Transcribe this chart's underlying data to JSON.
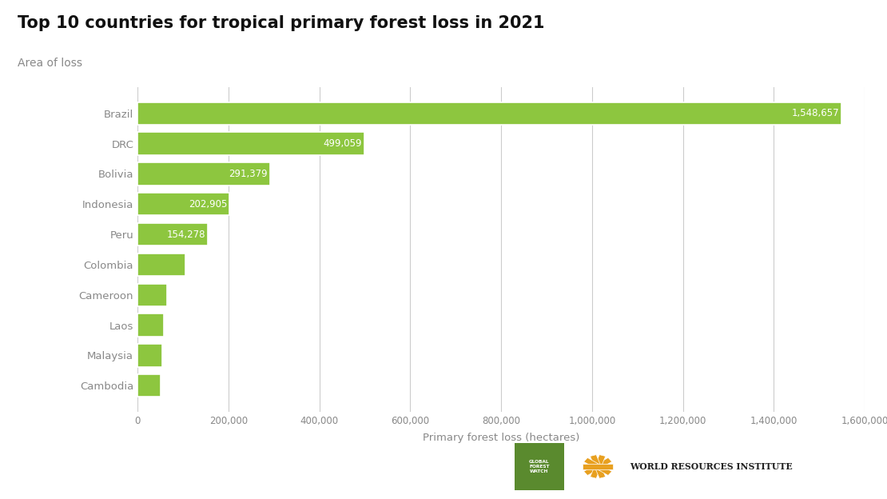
{
  "title": "Top 10 countries for tropical primary forest loss in 2021",
  "subtitle": "Area of loss",
  "xlabel": "Primary forest loss (hectares)",
  "countries": [
    "Brazil",
    "DRC",
    "Bolivia",
    "Indonesia",
    "Peru",
    "Colombia",
    "Cameroon",
    "Laos",
    "Malaysia",
    "Cambodia"
  ],
  "values": [
    1548657,
    499059,
    291379,
    202905,
    154278,
    105000,
    65000,
    58000,
    55000,
    51000
  ],
  "labeled_values": {
    "Brazil": "1,548,657",
    "DRC": "499,059",
    "Bolivia": "291,379",
    "Indonesia": "202,905",
    "Peru": "154,278"
  },
  "bar_color": "#8dc63f",
  "bg_color": "#ffffff",
  "text_color": "#888888",
  "title_color": "#111111",
  "grid_color": "#cccccc",
  "xlim": [
    0,
    1600000
  ],
  "xtick_values": [
    0,
    200000,
    400000,
    600000,
    800000,
    1000000,
    1200000,
    1400000,
    1600000
  ],
  "xtick_labels": [
    "0",
    "200,000",
    "400,000",
    "600,000",
    "800,000",
    "1,000,000",
    "1,200,000",
    "1,400,000",
    "1,600,000"
  ],
  "gfw_color": "#5a8a2e",
  "wri_emblem_color": "#e8a020",
  "wri_text_color": "#222222"
}
